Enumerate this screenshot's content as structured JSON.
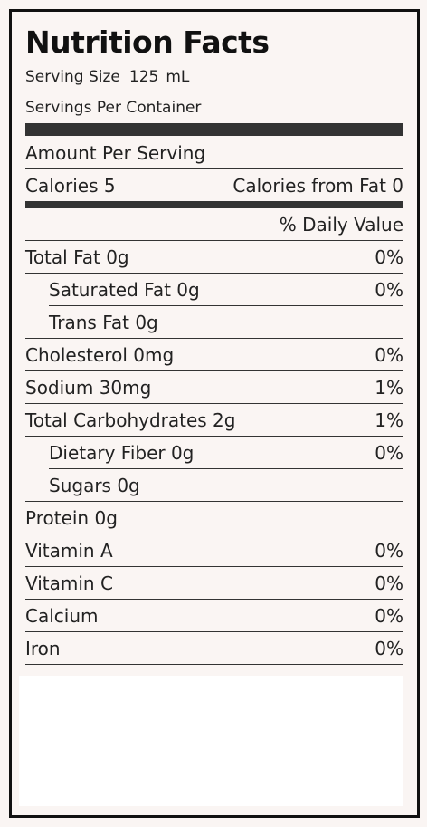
{
  "title": "Nutrition Facts",
  "serving_size": {
    "label": "Serving Size",
    "value": "125",
    "unit": "mL"
  },
  "servings_per_container": {
    "label": "Servings Per Container",
    "value": ""
  },
  "amount_per_serving": "Amount Per Serving",
  "calories": {
    "label": "Calories 5",
    "from_fat": "Calories from Fat 0"
  },
  "daily_value_header": "% Daily Value",
  "nutrients": [
    {
      "label": "Total Fat 0g",
      "dv": "0%"
    },
    {
      "label": "Saturated Fat 0g",
      "dv": "0%"
    },
    {
      "label": "Trans Fat 0g",
      "dv": ""
    },
    {
      "label": "Cholesterol 0mg",
      "dv": "0%"
    },
    {
      "label": "Sodium 30mg",
      "dv": "1%"
    },
    {
      "label": "Total Carbohydrates 2g",
      "dv": "1%"
    },
    {
      "label": "Dietary Fiber 0g",
      "dv": "0%"
    },
    {
      "label": "Sugars 0g",
      "dv": ""
    },
    {
      "label": "Protein 0g",
      "dv": ""
    },
    {
      "label": "Vitamin A",
      "dv": "0%"
    },
    {
      "label": "Vitamin C",
      "dv": "0%"
    },
    {
      "label": "Calcium",
      "dv": "0%"
    },
    {
      "label": "Iron",
      "dv": "0%"
    }
  ]
}
